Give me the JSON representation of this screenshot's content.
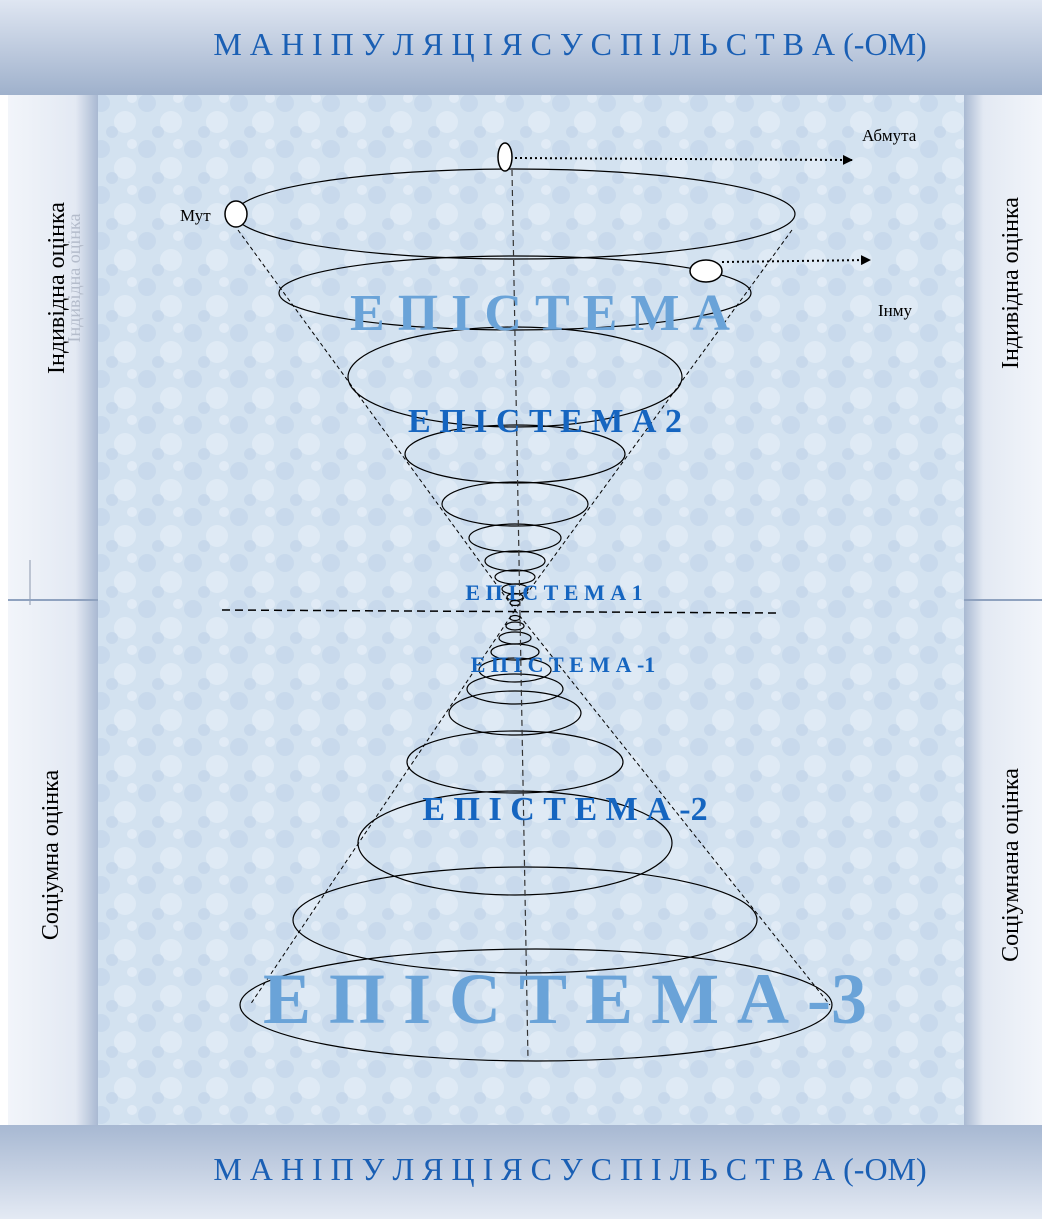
{
  "frame": {
    "top_title": "М А Н І П У Л Я Ц І Я  С У С П І Л Ь С Т В А (-ОМ)",
    "bottom_title": "М А Н І П У Л Я Ц І Я  С У С П І Л Ь С Т В А (-ОМ)",
    "left_upper": "Індивідна оцінка",
    "left_upper_ghost": "Індивідна оцінка",
    "left_lower": "Соціумна оцінка",
    "right_upper": "Індивідна оцінка",
    "right_lower": "Соціумнана оцінка"
  },
  "diagram": {
    "points": {
      "abmuta": "Абмута",
      "mut": "Мут",
      "inmu": "Інму"
    },
    "labels": {
      "episteme": "Е П І С Т Е М А",
      "episteme2": "Е П І С Т Е М А  2",
      "episteme1": "Е П І С Т Е М А 1",
      "episteme_m1": "Е П І С Т Е М А -1",
      "episteme_m2": "Е П І С Т Е М А -2",
      "episteme_m3": "Е П І С Т Е М А -3"
    }
  },
  "colors": {
    "frame_blue": "#1a5fb4",
    "label_blue": "#1565c0",
    "label_light": "#6aa3d8"
  }
}
